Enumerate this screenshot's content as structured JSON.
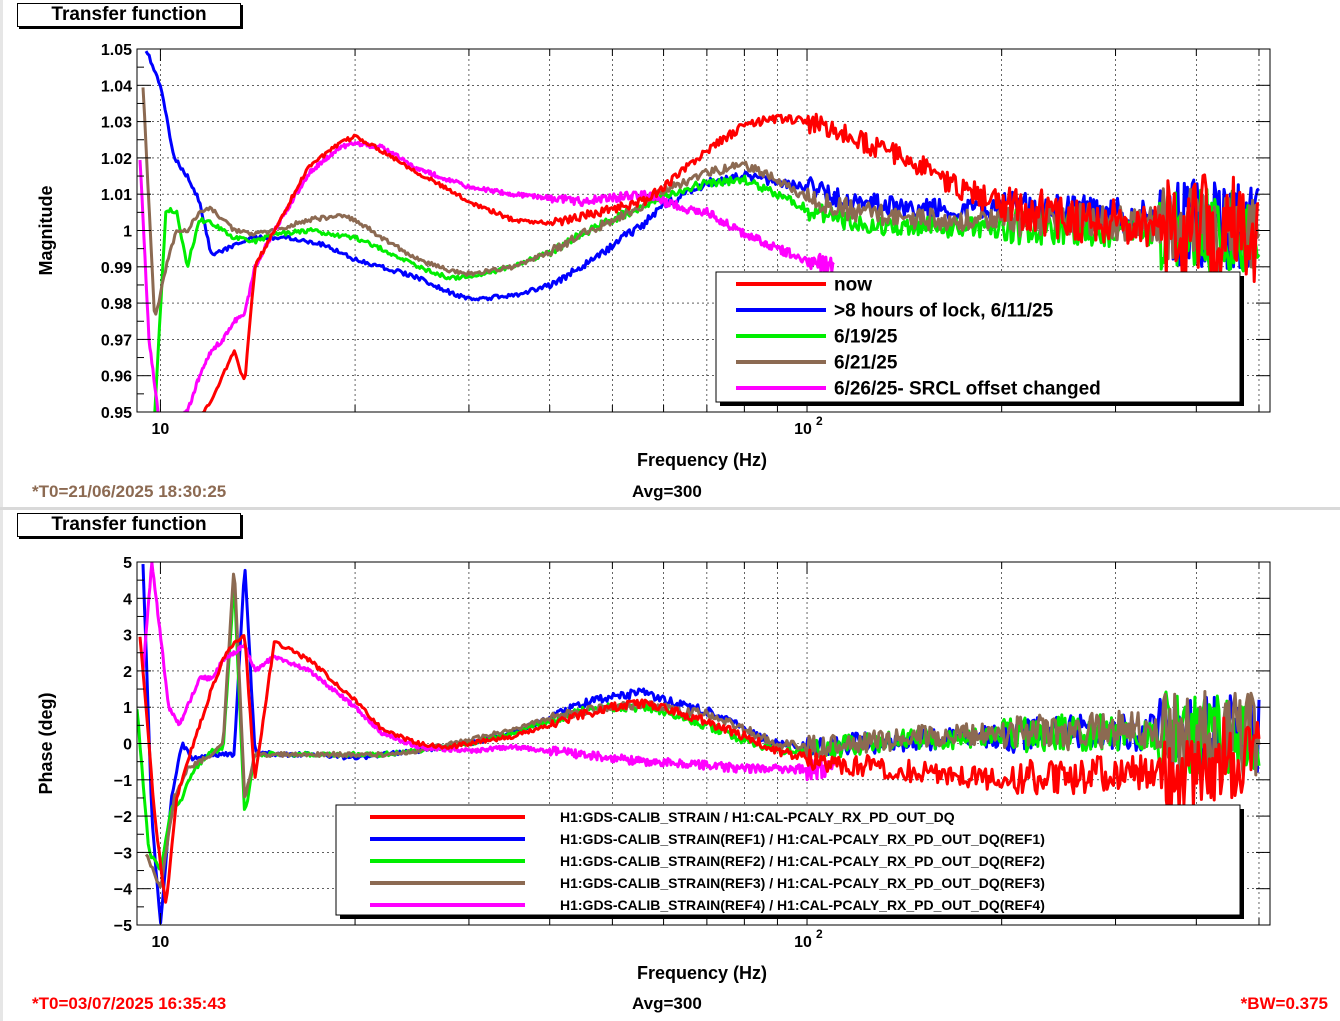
{
  "window": {
    "title": "Transfer function"
  },
  "chart_data": [
    {
      "type": "line",
      "title": "Transfer function",
      "xlabel": "Frequency (Hz)",
      "ylabel": "Magnitude",
      "xscale": "log",
      "xlim": [
        9.2,
        520
      ],
      "ylim": [
        0.95,
        1.05
      ],
      "yticks": [
        "0.95",
        "0.96",
        "0.97",
        "0.98",
        "0.99",
        "1",
        "1.01",
        "1.02",
        "1.03",
        "1.04",
        "1.05"
      ],
      "xtick_labels": [
        {
          "base": "10",
          "exp": ""
        },
        {
          "base": "10",
          "exp": "2"
        }
      ],
      "grid": true,
      "legend_position": "bottom-right",
      "footer_left": "*T0=21/06/2025 18:30:25",
      "footer_center": "Avg=300",
      "footer_right": "",
      "series": [
        {
          "name": "now",
          "color": "#ff0000",
          "x": [
            9.3,
            10,
            11,
            12,
            13,
            13.5,
            14,
            15,
            17,
            19,
            20,
            22,
            25,
            30,
            35,
            40,
            45,
            50,
            56,
            60,
            70,
            80,
            90,
            100,
            120,
            150,
            170,
            200,
            250,
            300,
            350,
            400,
            450,
            500
          ],
          "y": [
            0.945,
            0.94,
            0.945,
            0.953,
            0.967,
            0.958,
            0.99,
            1.0,
            1.018,
            1.024,
            1.026,
            1.022,
            1.016,
            1.008,
            1.003,
            1.002,
            1.004,
            1.006,
            1.008,
            1.012,
            1.022,
            1.029,
            1.031,
            1.03,
            1.025,
            1.018,
            1.012,
            1.007,
            1.004,
            1.002,
            1.001,
            1.0,
            1.0,
            1.0
          ]
        },
        {
          "name": ">8 hours of lock, 6/11/25",
          "color": "#0000ff",
          "x": [
            9.5,
            10,
            10.5,
            11,
            11.5,
            12,
            13,
            14,
            15,
            16,
            18,
            20,
            22,
            25,
            28,
            30,
            35,
            40,
            45,
            50,
            56,
            60,
            70,
            80,
            90,
            100,
            120,
            150,
            200,
            250,
            300,
            350,
            400,
            450,
            500
          ],
          "y": [
            1.05,
            1.04,
            1.02,
            1.015,
            1.008,
            0.993,
            0.996,
            0.998,
            0.998,
            0.998,
            0.996,
            0.992,
            0.99,
            0.987,
            0.983,
            0.981,
            0.982,
            0.985,
            0.99,
            0.996,
            1.002,
            1.007,
            1.013,
            1.015,
            1.013,
            1.012,
            1.008,
            1.006,
            1.006,
            1.005,
            1.004,
            1.003,
            1.002,
            1.001,
            1.0
          ]
        },
        {
          "name": "6/19/25",
          "color": "#00ee00",
          "x": [
            9.8,
            10.2,
            10.6,
            11,
            11.5,
            12,
            13,
            14,
            15,
            17,
            20,
            22,
            25,
            28,
            30,
            35,
            40,
            45,
            50,
            56,
            60,
            70,
            80,
            90,
            100,
            120,
            150,
            200,
            250,
            300,
            350,
            400,
            450,
            500
          ],
          "y": [
            0.95,
            1.006,
            1.005,
            0.99,
            1.003,
            1.002,
            0.998,
            0.997,
            0.999,
            1.0,
            0.998,
            0.995,
            0.99,
            0.987,
            0.987,
            0.99,
            0.994,
            0.999,
            1.003,
            1.007,
            1.01,
            1.013,
            1.014,
            1.01,
            1.006,
            1.002,
            1.001,
            1.001,
            1.001,
            1.0,
            1.0,
            1.0,
            1.0,
            1.0
          ]
        },
        {
          "name": "6/21/25",
          "color": "#8c6a52",
          "x": [
            9.4,
            9.8,
            10.2,
            10.6,
            11,
            11.5,
            12,
            13,
            14,
            15,
            17,
            19,
            20,
            22,
            25,
            28,
            30,
            35,
            40,
            45,
            50,
            56,
            60,
            70,
            80,
            90,
            100,
            120,
            150,
            200,
            250,
            300,
            350,
            400,
            450,
            500
          ],
          "y": [
            1.04,
            0.975,
            0.99,
            1.0,
            1.0,
            1.005,
            1.006,
            1.0,
            0.999,
            1.0,
            1.003,
            1.004,
            1.003,
            0.998,
            0.992,
            0.989,
            0.988,
            0.99,
            0.994,
            0.999,
            1.003,
            1.007,
            1.011,
            1.016,
            1.018,
            1.014,
            1.009,
            1.005,
            1.003,
            1.003,
            1.003,
            1.002,
            1.002,
            1.001,
            1.001,
            1.0
          ]
        },
        {
          "name": "6/26/25- SRCL offset changed",
          "color": "#ff00ff",
          "x": [
            9.3,
            9.6,
            10,
            11,
            11.5,
            12,
            12.5,
            13,
            13.5,
            14,
            15,
            17,
            19,
            20,
            22,
            25,
            30,
            35,
            40,
            45,
            50,
            56,
            60,
            65,
            70,
            80,
            90,
            100,
            110
          ],
          "y": [
            1.02,
            0.97,
            0.945,
            0.95,
            0.96,
            0.967,
            0.97,
            0.975,
            0.977,
            0.99,
            1.0,
            1.016,
            1.023,
            1.024,
            1.023,
            1.017,
            1.012,
            1.01,
            1.009,
            1.008,
            1.009,
            1.01,
            1.008,
            1.006,
            1.005,
            0.999,
            0.995,
            0.992,
            0.99
          ]
        }
      ]
    },
    {
      "type": "line",
      "title": "Transfer function",
      "xlabel": "Frequency (Hz)",
      "ylabel": "Phase (deg)",
      "xscale": "log",
      "xlim": [
        9.2,
        520
      ],
      "ylim": [
        -5,
        5
      ],
      "yticks": [
        "−5",
        "−4",
        "−3",
        "−2",
        "−1",
        "0",
        "1",
        "2",
        "3",
        "4",
        "5"
      ],
      "xtick_labels": [
        {
          "base": "10",
          "exp": ""
        },
        {
          "base": "10",
          "exp": "2"
        }
      ],
      "grid": true,
      "legend_position": "bottom-right",
      "footer_left": "*T0=03/07/2025 16:35:43",
      "footer_center": "Avg=300",
      "footer_right": "*BW=0.375",
      "series": [
        {
          "name": "H1:GDS-CALIB_STRAIN / H1:CAL-PCALY_RX_PD_OUT_DQ",
          "color": "#ff0000",
          "x": [
            9.3,
            9.5,
            9.8,
            10.2,
            10.6,
            11,
            11.5,
            12,
            12.5,
            13,
            13.5,
            14,
            15,
            17,
            20,
            22,
            25,
            28,
            30,
            35,
            40,
            45,
            50,
            56,
            60,
            70,
            80,
            90,
            100,
            120,
            150,
            200,
            250,
            300,
            350,
            400,
            450,
            500
          ],
          "y": [
            3.0,
            1.0,
            -2.0,
            -4.5,
            -1.5,
            -0.5,
            0.5,
            1.5,
            2.3,
            2.8,
            3.0,
            -1.0,
            2.8,
            2.3,
            1.2,
            0.4,
            0.0,
            -0.1,
            0.0,
            0.2,
            0.5,
            0.8,
            1.0,
            1.1,
            1.0,
            0.6,
            0.2,
            -0.2,
            -0.4,
            -0.6,
            -0.8,
            -1.0,
            -0.9,
            -0.8,
            -0.8,
            -0.6,
            -0.4,
            -0.3
          ]
        },
        {
          "name": "H1:GDS-CALIB_STRAIN(REF1) / H1:CAL-PCALY_RX_PD_OUT_DQ(REF1)",
          "color": "#0000ff",
          "x": [
            9.4,
            9.7,
            10,
            10.4,
            10.8,
            11.2,
            12,
            12.5,
            13,
            13.5,
            14,
            15,
            17,
            20,
            22,
            25,
            30,
            35,
            40,
            45,
            50,
            56,
            60,
            70,
            80,
            90,
            100,
            120,
            150,
            200,
            250,
            300,
            350,
            400,
            450,
            500
          ],
          "y": [
            5.0,
            -2.0,
            -5.0,
            -1.5,
            0.0,
            -0.4,
            -0.3,
            -0.3,
            -0.3,
            5.0,
            -0.2,
            -0.3,
            -0.3,
            -0.4,
            -0.3,
            -0.2,
            0.0,
            0.3,
            0.7,
            1.1,
            1.3,
            1.4,
            1.2,
            0.9,
            0.4,
            0.0,
            -0.1,
            0.0,
            0.1,
            0.2,
            0.3,
            0.3,
            0.3,
            0.3,
            0.2,
            0.2
          ]
        },
        {
          "name": "H1:GDS-CALIB_STRAIN(REF2) / H1:CAL-PCALY_RX_PD_OUT_DQ(REF2)",
          "color": "#00ee00",
          "x": [
            9.2,
            9.6,
            10,
            10.4,
            10.8,
            11.2,
            12,
            12.5,
            13,
            13.5,
            14,
            15,
            17,
            20,
            22,
            25,
            30,
            35,
            40,
            45,
            50,
            56,
            60,
            70,
            80,
            90,
            100,
            120,
            150,
            200,
            250,
            300,
            350,
            400,
            450,
            500
          ],
          "y": [
            1.0,
            -3.0,
            -3.5,
            -1.8,
            -1.5,
            -0.8,
            -0.2,
            -0.2,
            4.5,
            -2.0,
            -0.3,
            -0.3,
            -0.3,
            -0.3,
            -0.3,
            -0.2,
            0.0,
            0.3,
            0.6,
            0.9,
            1.0,
            1.0,
            0.9,
            0.5,
            0.1,
            -0.2,
            -0.2,
            0.0,
            0.1,
            0.2,
            0.3,
            0.3,
            0.3,
            0.3,
            0.2,
            0.2
          ]
        },
        {
          "name": "H1:GDS-CALIB_STRAIN(REF3) / H1:CAL-PCALY_RX_PD_OUT_DQ(REF3)",
          "color": "#8c6a52",
          "x": [
            9.5,
            10,
            10.5,
            11,
            12,
            12.5,
            13,
            13.5,
            14,
            15,
            17,
            20,
            22,
            25,
            30,
            35,
            40,
            45,
            50,
            56,
            60,
            70,
            80,
            90,
            100,
            120,
            150,
            200,
            250,
            300,
            350,
            400,
            450,
            500
          ],
          "y": [
            -3.0,
            -4.0,
            -1.5,
            -0.7,
            -0.3,
            0.0,
            5.0,
            -1.5,
            -0.3,
            -0.3,
            -0.3,
            -0.3,
            -0.3,
            -0.2,
            0.1,
            0.4,
            0.7,
            0.9,
            1.0,
            1.1,
            1.0,
            0.8,
            0.4,
            0.0,
            -0.1,
            0.0,
            0.2,
            0.3,
            0.3,
            0.4,
            0.3,
            0.3,
            0.3,
            0.2
          ]
        },
        {
          "name": "H1:GDS-CALIB_STRAIN(REF4) / H1:CAL-PCALY_RX_PD_OUT_DQ(REF4)",
          "color": "#ff00ff",
          "x": [
            9.4,
            9.7,
            10,
            10.3,
            10.7,
            11,
            11.5,
            12,
            12.5,
            13,
            13.5,
            14,
            15,
            17,
            20,
            22,
            25,
            30,
            35,
            40,
            45,
            50,
            56,
            60,
            70,
            80,
            90,
            100,
            110
          ],
          "y": [
            2.0,
            5.0,
            3.0,
            1.0,
            0.5,
            1.0,
            1.8,
            1.8,
            2.3,
            2.5,
            2.7,
            2.0,
            2.4,
            2.0,
            1.0,
            0.3,
            -0.1,
            -0.2,
            -0.1,
            -0.2,
            -0.3,
            -0.4,
            -0.5,
            -0.5,
            -0.6,
            -0.7,
            -0.7,
            -0.7,
            -0.7
          ]
        }
      ]
    }
  ]
}
